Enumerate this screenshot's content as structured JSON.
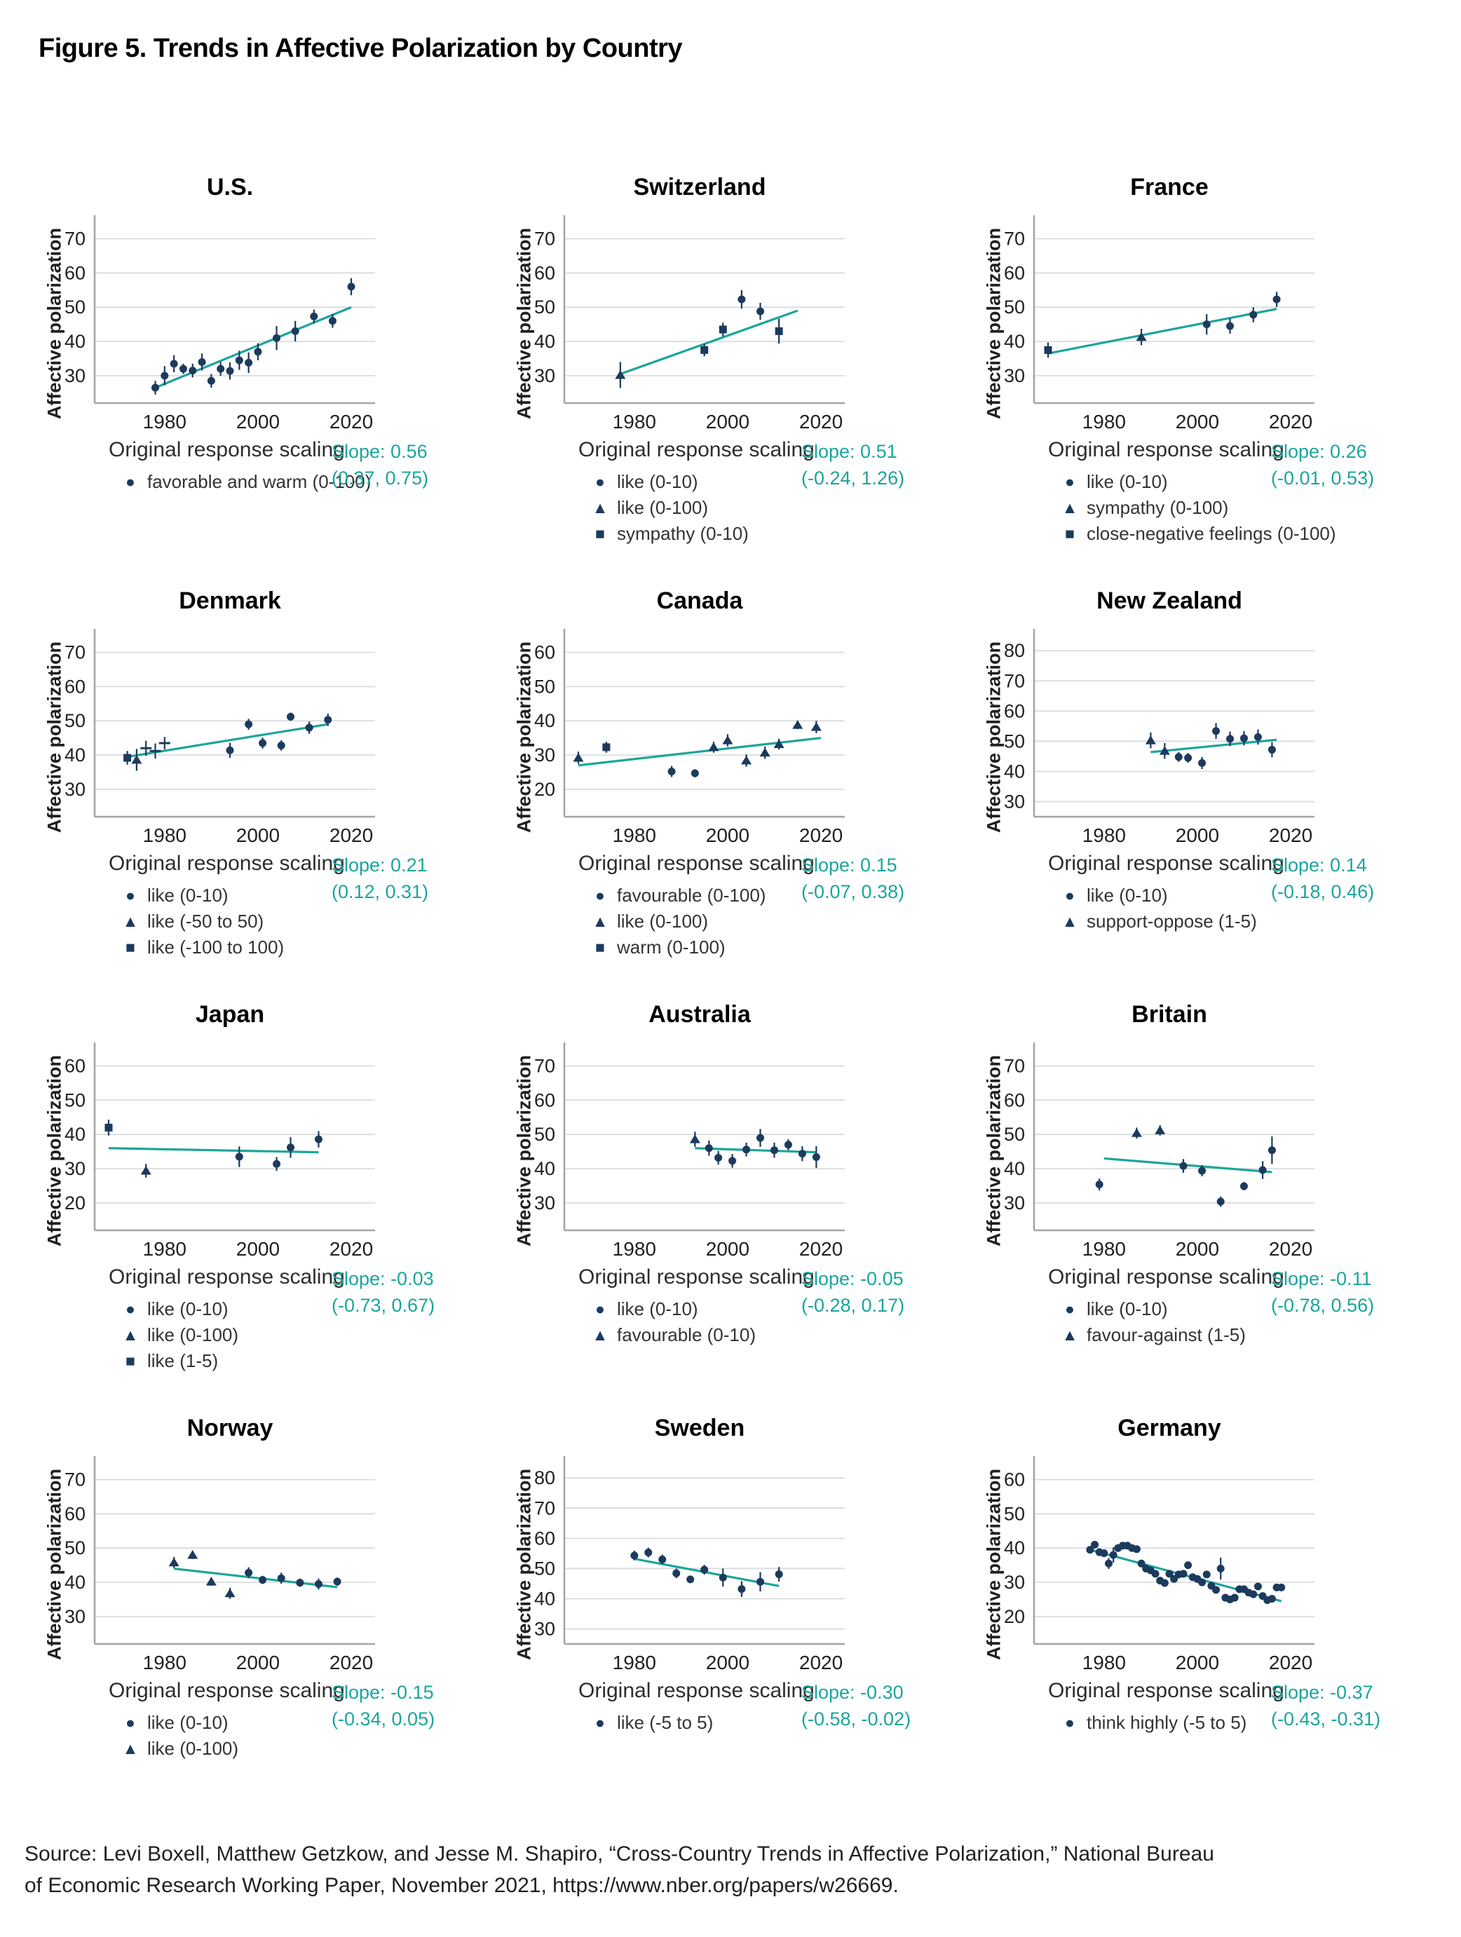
{
  "figure_title": "Figure 5. Trends in Affective Polarization by Country",
  "shared": {
    "ylabel": "Affective polarization",
    "legend_heading": "Original response scaling",
    "xticks": [
      1980,
      2000,
      2020
    ]
  },
  "source": {
    "line1": "Source: Levi Boxell, Matthew Getzkow, and Jesse M. Shapiro, “Cross-Country Trends in Affective Polarization,” National Bureau",
    "line2": "of Economic Research Working Paper, November 2021, https://www.nber.org/papers/w26669."
  },
  "colors": {
    "point_navy": "#1C3A5E",
    "trend_teal": "#1BA59D",
    "slope_teal": "#1BA59D",
    "grid_gray": "#D8DADB",
    "spine_gray": "#A3A6A9",
    "tick_text": "#231F20"
  },
  "chart_data": [
    {
      "type": "scatter",
      "title": "U.S.",
      "xlim": [
        1965,
        2023
      ],
      "ylim": [
        22,
        74
      ],
      "yticks": [
        30,
        40,
        50,
        60,
        70
      ],
      "slope": "Slope: 0.56",
      "ci": "(0.37, 0.75)",
      "trend": [
        1978,
        26.5,
        2020,
        50
      ],
      "legend": [
        [
          "c",
          "favorable and warm (0-100)"
        ]
      ],
      "points": [
        [
          1978,
          26.5,
          2,
          "c"
        ],
        [
          1980,
          30,
          2.8,
          "c"
        ],
        [
          1982,
          33.5,
          2.5,
          "c"
        ],
        [
          1984,
          32,
          1.5,
          "c"
        ],
        [
          1986,
          31.5,
          2,
          "c"
        ],
        [
          1988,
          34,
          2.5,
          "c"
        ],
        [
          1990,
          28.5,
          2,
          "c"
        ],
        [
          1992,
          32,
          2,
          "c"
        ],
        [
          1994,
          31.4,
          2.5,
          "c"
        ],
        [
          1996,
          34.5,
          2.8,
          "c"
        ],
        [
          1998,
          33.8,
          3,
          "c"
        ],
        [
          2000,
          37,
          2.5,
          "c"
        ],
        [
          2004,
          41,
          3.5,
          "c"
        ],
        [
          2008,
          43,
          3,
          "c"
        ],
        [
          2012,
          47.3,
          2,
          "c"
        ],
        [
          2016,
          46,
          2,
          "c"
        ],
        [
          2020,
          56,
          2.5,
          "c"
        ]
      ]
    },
    {
      "type": "scatter",
      "title": "Switzerland",
      "xlim": [
        1965,
        2023
      ],
      "ylim": [
        22,
        74
      ],
      "yticks": [
        30,
        40,
        50,
        60,
        70
      ],
      "slope": "Slope: 0.51",
      "ci": "(-0.24, 1.26)",
      "trend": [
        1977,
        30.5,
        2015,
        49
      ],
      "legend": [
        [
          "c",
          "like (0-10)"
        ],
        [
          "t",
          "like (0-100)"
        ],
        [
          "s",
          "sympathy (0-10)"
        ]
      ],
      "points": [
        [
          1977,
          30.2,
          3.8,
          "t"
        ],
        [
          1995,
          37.5,
          1.8,
          "s"
        ],
        [
          1999,
          43.5,
          2,
          "s"
        ],
        [
          2003,
          52.3,
          2.7,
          "c"
        ],
        [
          2007,
          48.8,
          2.5,
          "c"
        ],
        [
          2011,
          43,
          3.6,
          "s"
        ]
      ]
    },
    {
      "type": "scatter",
      "title": "France",
      "xlim": [
        1965,
        2023
      ],
      "ylim": [
        22,
        74
      ],
      "yticks": [
        30,
        40,
        50,
        60,
        70
      ],
      "slope": "Slope: 0.26",
      "ci": "(-0.01, 0.53)",
      "trend": [
        1968,
        36.5,
        2017,
        49.5
      ],
      "legend": [
        [
          "c",
          "like (0-10)"
        ],
        [
          "t",
          "sympathy (0-100)"
        ],
        [
          "s",
          "close-negative feelings (0-100)"
        ]
      ],
      "points": [
        [
          1968,
          37.5,
          2.2,
          "s"
        ],
        [
          1988,
          41.3,
          2.4,
          "t"
        ],
        [
          2002,
          45,
          3,
          "c"
        ],
        [
          2007,
          44.5,
          2.2,
          "c"
        ],
        [
          2012,
          47.8,
          2.2,
          "c"
        ],
        [
          2017,
          52.3,
          2.2,
          "c"
        ]
      ]
    },
    {
      "type": "scatter",
      "title": "Denmark",
      "xlim": [
        1965,
        2023
      ],
      "ylim": [
        22,
        74
      ],
      "yticks": [
        30,
        40,
        50,
        60,
        70
      ],
      "slope": "Slope: 0.21",
      "ci": "(0.12, 0.31)",
      "trend": [
        1972,
        39.5,
        2015,
        49
      ],
      "legend": [
        [
          "c",
          "like (0-10)"
        ],
        [
          "t",
          "like (-50 to 50)"
        ],
        [
          "s",
          "like (-100 to 100)"
        ]
      ],
      "points": [
        [
          1972,
          39.2,
          2,
          "s"
        ],
        [
          1974,
          38.6,
          3.2,
          "t"
        ],
        [
          1976,
          42,
          2.2,
          "p"
        ],
        [
          1978,
          41.2,
          2.2,
          "p"
        ],
        [
          1980,
          43.5,
          1.8,
          "p"
        ],
        [
          1994,
          41.4,
          2.2,
          "c"
        ],
        [
          1998,
          49,
          1.6,
          "c"
        ],
        [
          2001,
          43.5,
          1.6,
          "c"
        ],
        [
          2005,
          42.8,
          1.5,
          "c"
        ],
        [
          2007,
          51.2,
          1.2,
          "c"
        ],
        [
          2011,
          48,
          1.8,
          "c"
        ],
        [
          2015,
          50.3,
          1.8,
          "c"
        ]
      ]
    },
    {
      "type": "scatter",
      "title": "Canada",
      "xlim": [
        1965,
        2023
      ],
      "ylim": [
        12,
        64
      ],
      "yticks": [
        20,
        30,
        40,
        50,
        60
      ],
      "slope": "Slope: 0.15",
      "ci": "(-0.07, 0.38)",
      "trend": [
        1968,
        27,
        2020,
        35
      ],
      "legend": [
        [
          "c",
          "favourable (0-100)"
        ],
        [
          "t",
          "like (0-100)"
        ],
        [
          "s",
          "warm (0-100)"
        ]
      ],
      "points": [
        [
          1968,
          29.2,
          1.8,
          "t"
        ],
        [
          1974,
          32.3,
          1.6,
          "s"
        ],
        [
          1988,
          25.2,
          1.6,
          "c"
        ],
        [
          1993,
          24.7,
          1.2,
          "c"
        ],
        [
          1997,
          32.3,
          1.6,
          "t"
        ],
        [
          2000,
          34.3,
          1.8,
          "t"
        ],
        [
          2004,
          28.4,
          1.8,
          "t"
        ],
        [
          2008,
          30.7,
          1.8,
          "t"
        ],
        [
          2011,
          33.2,
          1.6,
          "t"
        ],
        [
          2015,
          38.8,
          1.2,
          "t"
        ],
        [
          2019,
          38.2,
          1.8,
          "t"
        ]
      ]
    },
    {
      "type": "scatter",
      "title": "New Zealand",
      "xlim": [
        1965,
        2023
      ],
      "ylim": [
        25,
        84
      ],
      "yticks": [
        30,
        40,
        50,
        60,
        70,
        80
      ],
      "slope": "Slope: 0.14",
      "ci": "(-0.18, 0.46)",
      "trend": [
        1990,
        46.4,
        2017,
        50.5
      ],
      "legend": [
        [
          "c",
          "like (0-10)"
        ],
        [
          "t",
          "support-oppose (1-5)"
        ]
      ],
      "points": [
        [
          1990,
          50.3,
          2.6,
          "t"
        ],
        [
          1993,
          46.8,
          2.6,
          "t"
        ],
        [
          1996,
          44.8,
          1.6,
          "c"
        ],
        [
          1998,
          44.5,
          1.6,
          "c"
        ],
        [
          2001,
          42.8,
          2,
          "c"
        ],
        [
          2004,
          53.4,
          2.6,
          "c"
        ],
        [
          2007,
          50.8,
          2.4,
          "c"
        ],
        [
          2010,
          51,
          2.4,
          "c"
        ],
        [
          2013,
          51.4,
          2.5,
          "c"
        ],
        [
          2016,
          47.2,
          2.5,
          "c"
        ]
      ]
    },
    {
      "type": "scatter",
      "title": "Japan",
      "xlim": [
        1965,
        2023
      ],
      "ylim": [
        12,
        64
      ],
      "yticks": [
        20,
        30,
        40,
        50,
        60
      ],
      "slope": "Slope: -0.03",
      "ci": "(-0.73, 0.67)",
      "trend": [
        1968,
        36,
        2013,
        34.8
      ],
      "legend": [
        [
          "c",
          "like (0-10)"
        ],
        [
          "t",
          "like (0-100)"
        ],
        [
          "s",
          "like (1-5)"
        ]
      ],
      "points": [
        [
          1968,
          42,
          2.3,
          "s"
        ],
        [
          1976,
          29.4,
          2,
          "t"
        ],
        [
          1996,
          33.5,
          3,
          "c"
        ],
        [
          2004,
          31.4,
          2,
          "c"
        ],
        [
          2007,
          36.2,
          3,
          "c"
        ],
        [
          2013,
          38.6,
          2.4,
          "c"
        ]
      ]
    },
    {
      "type": "scatter",
      "title": "Australia",
      "xlim": [
        1965,
        2023
      ],
      "ylim": [
        22,
        74
      ],
      "yticks": [
        30,
        40,
        50,
        60,
        70
      ],
      "slope": "Slope: -0.05",
      "ci": "(-0.28, 0.17)",
      "trend": [
        1993,
        46,
        2019,
        44.8
      ],
      "legend": [
        [
          "c",
          "like (0-10)"
        ],
        [
          "t",
          "favourable (0-10)"
        ]
      ],
      "points": [
        [
          1993,
          48.6,
          2.2,
          "t"
        ],
        [
          1996,
          46,
          2.2,
          "c"
        ],
        [
          1998,
          43.2,
          2,
          "c"
        ],
        [
          2001,
          42.3,
          2,
          "c"
        ],
        [
          2004,
          45.6,
          2,
          "c"
        ],
        [
          2007,
          49,
          2.6,
          "c"
        ],
        [
          2010,
          45.4,
          2.2,
          "c"
        ],
        [
          2013,
          47,
          1.6,
          "c"
        ],
        [
          2016,
          44.4,
          2.2,
          "c"
        ],
        [
          2019,
          43.4,
          3.2,
          "c"
        ]
      ]
    },
    {
      "type": "scatter",
      "title": "Britain",
      "xlim": [
        1965,
        2023
      ],
      "ylim": [
        22,
        74
      ],
      "yticks": [
        30,
        40,
        50,
        60,
        70
      ],
      "slope": "Slope: -0.11",
      "ci": "(-0.78, 0.56)",
      "trend": [
        1980,
        43,
        2016,
        39
      ],
      "legend": [
        [
          "c",
          "like (0-10)"
        ],
        [
          "t",
          "favour-against (1-5)"
        ]
      ],
      "points": [
        [
          1979,
          35.4,
          1.7,
          "c"
        ],
        [
          1987,
          50.4,
          1.6,
          "t"
        ],
        [
          1992,
          51.2,
          1.5,
          "t"
        ],
        [
          1997,
          40.8,
          2,
          "c"
        ],
        [
          2001,
          39.4,
          1.6,
          "c"
        ],
        [
          2005,
          30.4,
          1.5,
          "c"
        ],
        [
          2010,
          34.9,
          1.2,
          "c"
        ],
        [
          2014,
          39.6,
          2.6,
          "c"
        ],
        [
          2016,
          45.4,
          4,
          "c"
        ]
      ]
    },
    {
      "type": "scatter",
      "title": "Norway",
      "xlim": [
        1965,
        2023
      ],
      "ylim": [
        22,
        74
      ],
      "yticks": [
        30,
        40,
        50,
        60,
        70
      ],
      "slope": "Slope: -0.15",
      "ci": "(-0.34, 0.05)",
      "trend": [
        1982,
        44,
        2017,
        38.6
      ],
      "legend": [
        [
          "c",
          "like (0-10)"
        ],
        [
          "t",
          "like (0-100)"
        ]
      ],
      "points": [
        [
          1982,
          45.8,
          1.6,
          "t"
        ],
        [
          1986,
          48,
          1.2,
          "t"
        ],
        [
          1990,
          40.2,
          1.2,
          "t"
        ],
        [
          1994,
          36.8,
          1.6,
          "t"
        ],
        [
          1998,
          42.8,
          1.6,
          "c"
        ],
        [
          2001,
          40.7,
          1.2,
          "c"
        ],
        [
          2005,
          41.2,
          1.6,
          "c"
        ],
        [
          2009,
          39.9,
          1.2,
          "c"
        ],
        [
          2013,
          39.5,
          1.6,
          "c"
        ],
        [
          2017,
          40.2,
          1.2,
          "c"
        ]
      ]
    },
    {
      "type": "scatter",
      "title": "Sweden",
      "xlim": [
        1965,
        2023
      ],
      "ylim": [
        25,
        84
      ],
      "yticks": [
        30,
        40,
        50,
        60,
        70,
        80
      ],
      "slope": "Slope: -0.30",
      "ci": "(-0.58, -0.02)",
      "trend": [
        1980,
        53.2,
        2011,
        44.2
      ],
      "legend": [
        [
          "c",
          "like (-5 to 5)"
        ]
      ],
      "points": [
        [
          1980,
          54.3,
          1.6,
          "c"
        ],
        [
          1983,
          55.3,
          1.6,
          "c"
        ],
        [
          1986,
          53,
          1.6,
          "c"
        ],
        [
          1989,
          48.4,
          1.6,
          "c"
        ],
        [
          1992,
          46.4,
          1.2,
          "c"
        ],
        [
          1995,
          49.6,
          1.6,
          "c"
        ],
        [
          1999,
          47,
          3,
          "c"
        ],
        [
          2003,
          43.2,
          2.6,
          "c"
        ],
        [
          2007,
          45.6,
          3.2,
          "c"
        ],
        [
          2011,
          48.1,
          2.4,
          "c"
        ]
      ]
    },
    {
      "type": "scatter",
      "title": "Germany",
      "xlim": [
        1965,
        2023
      ],
      "ylim": [
        12,
        64
      ],
      "yticks": [
        20,
        30,
        40,
        50,
        60
      ],
      "slope": "Slope: -0.37",
      "ci": "(-0.43, -0.31)",
      "trend": [
        1977,
        39.5,
        2018,
        24.5
      ],
      "legend": [
        [
          "c",
          "think highly (-5 to 5)"
        ]
      ],
      "points": [
        [
          1977,
          39.5,
          1,
          "c"
        ],
        [
          1978,
          41,
          1,
          "c"
        ],
        [
          1979,
          38.8,
          1,
          "c"
        ],
        [
          1980,
          38.5,
          1,
          "c"
        ],
        [
          1981,
          35.5,
          1.6,
          "c"
        ],
        [
          1982,
          38,
          2.2,
          "c"
        ],
        [
          1983,
          40,
          1,
          "c"
        ],
        [
          1984,
          40.7,
          0.9,
          "c"
        ],
        [
          1985,
          40.7,
          0.9,
          "c"
        ],
        [
          1986,
          40,
          1,
          "c"
        ],
        [
          1987,
          39.7,
          1,
          "c"
        ],
        [
          1988,
          35.5,
          1.1,
          "c"
        ],
        [
          1989,
          34,
          1,
          "c"
        ],
        [
          1990,
          33.5,
          1,
          "c"
        ],
        [
          1991,
          32.5,
          1,
          "c"
        ],
        [
          1992,
          30.5,
          1.1,
          "c"
        ],
        [
          1993,
          29.8,
          1,
          "c"
        ],
        [
          1994,
          32.5,
          1,
          "c"
        ],
        [
          1995,
          31,
          1.1,
          "c"
        ],
        [
          1996,
          32.3,
          0.9,
          "c"
        ],
        [
          1997,
          32.5,
          0.9,
          "c"
        ],
        [
          1998,
          35,
          0.9,
          "c"
        ],
        [
          1999,
          31.5,
          1,
          "c"
        ],
        [
          2000,
          31,
          1.1,
          "c"
        ],
        [
          2001,
          30,
          1.1,
          "c"
        ],
        [
          2002,
          32.3,
          0.9,
          "c"
        ],
        [
          2003,
          29,
          1.1,
          "c"
        ],
        [
          2004,
          27.8,
          0.9,
          "c"
        ],
        [
          2005,
          34,
          3.2,
          "c"
        ],
        [
          2006,
          25.5,
          0.9,
          "c"
        ],
        [
          2007,
          25,
          0.9,
          "c"
        ],
        [
          2008,
          25.5,
          1,
          "c"
        ],
        [
          2009,
          28,
          0.9,
          "c"
        ],
        [
          2010,
          28,
          0.9,
          "c"
        ],
        [
          2011,
          27,
          0.9,
          "c"
        ],
        [
          2012,
          26.5,
          0.9,
          "c"
        ],
        [
          2013,
          28.8,
          1.1,
          "c"
        ],
        [
          2014,
          26,
          0.9,
          "c"
        ],
        [
          2015,
          24.8,
          0.9,
          "c"
        ],
        [
          2016,
          25.2,
          0.9,
          "c"
        ],
        [
          2017,
          28.5,
          0.9,
          "c"
        ],
        [
          2018,
          28.5,
          0.9,
          "c"
        ]
      ]
    }
  ]
}
